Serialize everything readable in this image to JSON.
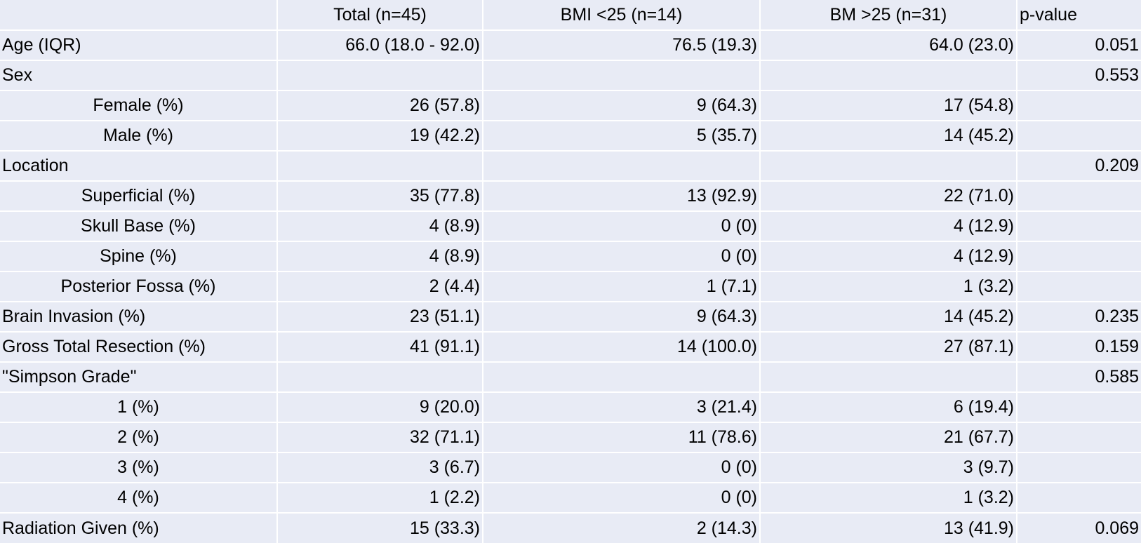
{
  "header": {
    "col0": "",
    "col1": "Total (n=45)",
    "col2": "BMI <25 (n=14)",
    "col3": "BM >25 (n=31)",
    "col4": "p-value"
  },
  "rows": [
    {
      "label": "Age (IQR)",
      "total": "66.0 (18.0 - 92.0)",
      "bmi_low": "76.5 (19.3)",
      "bmi_high": "64.0 (23.0)",
      "p": "0.051",
      "indent": false
    },
    {
      "label": "Sex",
      "total": "",
      "bmi_low": "",
      "bmi_high": "",
      "p": "0.553",
      "indent": false
    },
    {
      "label": "Female (%)",
      "total": "26 (57.8)",
      "bmi_low": "9 (64.3)",
      "bmi_high": "17 (54.8)",
      "p": "",
      "indent": true
    },
    {
      "label": "Male (%)",
      "total": "19 (42.2)",
      "bmi_low": "5 (35.7)",
      "bmi_high": "14 (45.2)",
      "p": "",
      "indent": true
    },
    {
      "label": "Location",
      "total": "",
      "bmi_low": "",
      "bmi_high": "",
      "p": "0.209",
      "indent": false
    },
    {
      "label": "Superficial (%)",
      "total": "35 (77.8)",
      "bmi_low": "13 (92.9)",
      "bmi_high": "22 (71.0)",
      "p": "",
      "indent": true
    },
    {
      "label": "Skull Base (%)",
      "total": "4 (8.9)",
      "bmi_low": "0 (0)",
      "bmi_high": "4 (12.9)",
      "p": "",
      "indent": true
    },
    {
      "label": "Spine (%)",
      "total": "4 (8.9)",
      "bmi_low": "0 (0)",
      "bmi_high": "4 (12.9)",
      "p": "",
      "indent": true
    },
    {
      "label": "Posterior Fossa (%)",
      "total": "2 (4.4)",
      "bmi_low": "1 (7.1)",
      "bmi_high": "1 (3.2)",
      "p": "",
      "indent": true
    },
    {
      "label": "Brain Invasion (%)",
      "total": "23 (51.1)",
      "bmi_low": "9 (64.3)",
      "bmi_high": "14 (45.2)",
      "p": "0.235",
      "indent": false
    },
    {
      "label": "Gross Total Resection (%)",
      "total": "41 (91.1)",
      "bmi_low": "14 (100.0)",
      "bmi_high": "27 (87.1)",
      "p": "0.159",
      "indent": false
    },
    {
      "label": "\"Simpson Grade\"",
      "total": "",
      "bmi_low": "",
      "bmi_high": "",
      "p": "0.585",
      "indent": false
    },
    {
      "label": "1 (%)",
      "total": "9 (20.0)",
      "bmi_low": "3 (21.4)",
      "bmi_high": "6 (19.4)",
      "p": "",
      "indent": true
    },
    {
      "label": "2 (%)",
      "total": "32 (71.1)",
      "bmi_low": "11 (78.6)",
      "bmi_high": "21 (67.7)",
      "p": "",
      "indent": true
    },
    {
      "label": "3 (%)",
      "total": "3 (6.7)",
      "bmi_low": "0 (0)",
      "bmi_high": "3 (9.7)",
      "p": "",
      "indent": true
    },
    {
      "label": "4 (%)",
      "total": "1 (2.2)",
      "bmi_low": "0 (0)",
      "bmi_high": "1 (3.2)",
      "p": "",
      "indent": true
    },
    {
      "label": "Radiation Given (%)",
      "total": "15 (33.3)",
      "bmi_low": "2 (14.3)",
      "bmi_high": "13 (41.9)",
      "p": "0.069",
      "indent": false
    }
  ]
}
